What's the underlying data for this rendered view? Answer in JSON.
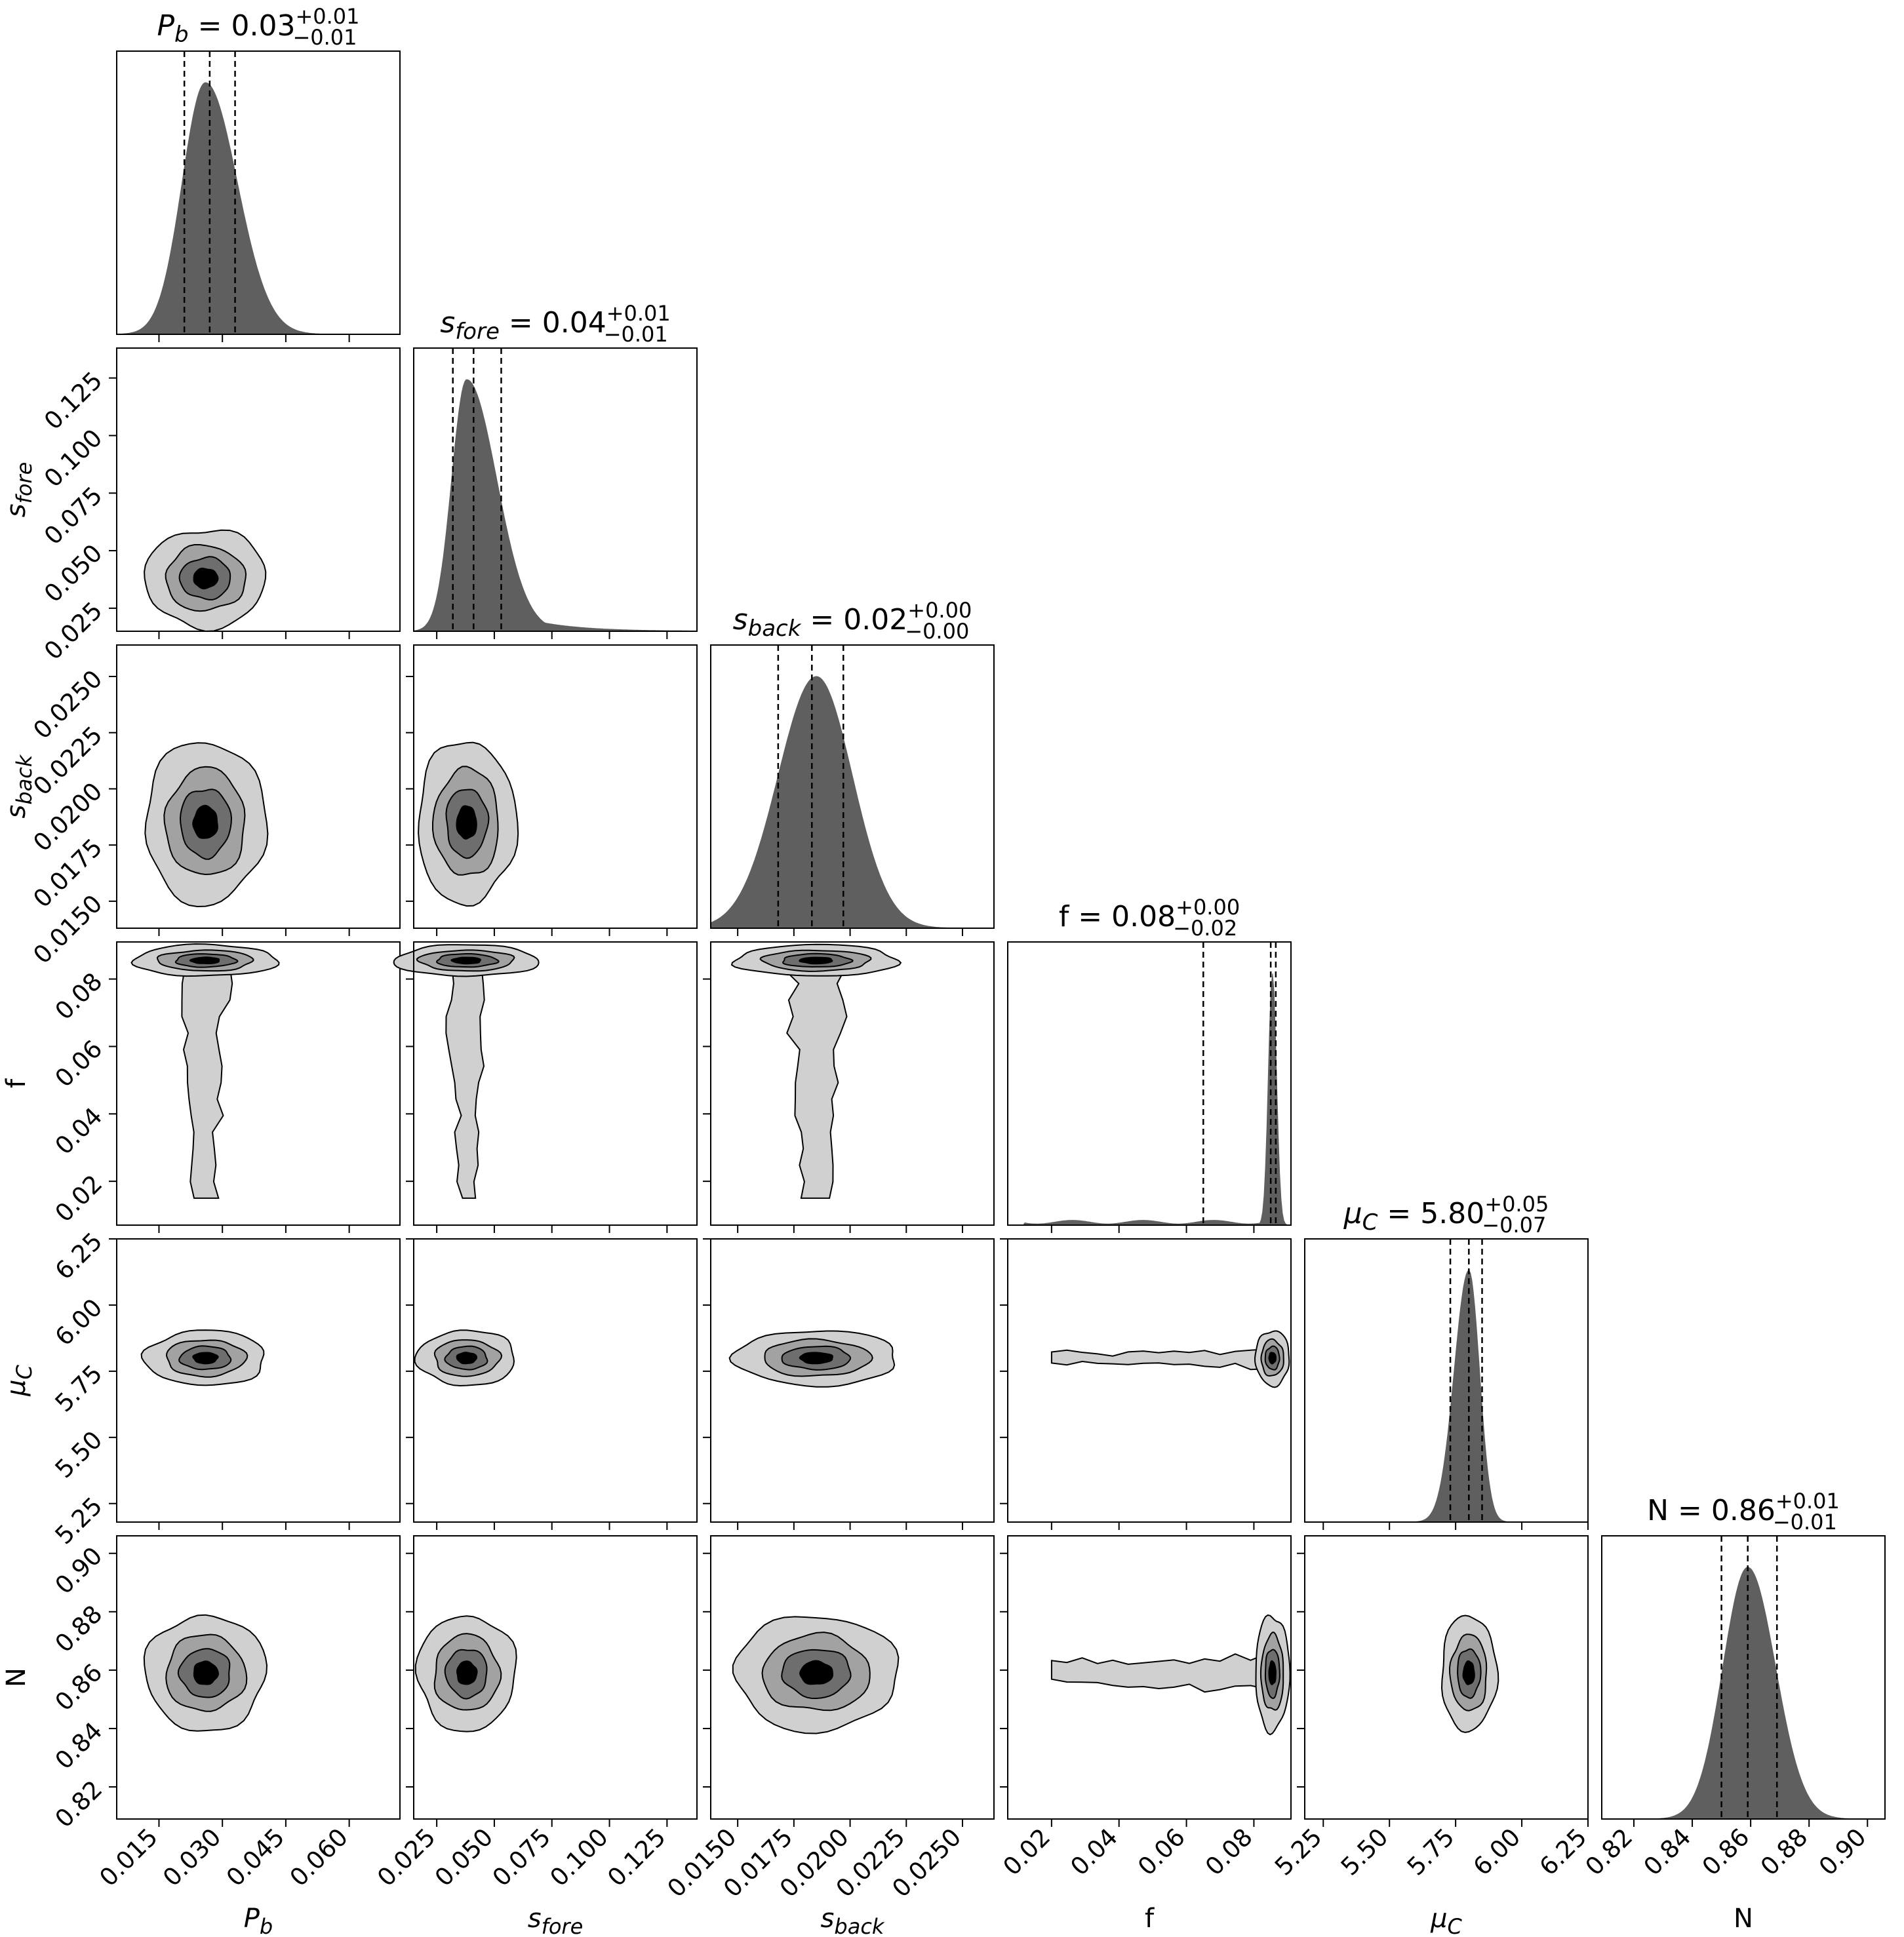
{
  "chart_data": {
    "type": "corner",
    "parameters": [
      {
        "key": "Pb",
        "label": "P",
        "sub": "b",
        "italic": true,
        "range": [
          0.005,
          0.072
        ],
        "median": 0.027,
        "q16": 0.021,
        "q84": 0.033,
        "title_value": "0.03",
        "title_plus": "+0.01",
        "title_minus": "−0.01",
        "hist_peak_x": 0.026,
        "hist_sigma_left": 0.0055,
        "hist_sigma_right": 0.0075,
        "ticks": [
          "0.015",
          "0.030",
          "0.045",
          "0.060"
        ],
        "tick_values": [
          0.015,
          0.03,
          0.045,
          0.06
        ]
      },
      {
        "key": "sfore",
        "label": "s",
        "sub": "fore",
        "italic": true,
        "range": [
          0.015,
          0.138
        ],
        "median": 0.041,
        "q16": 0.032,
        "q84": 0.053,
        "title_value": "0.04",
        "title_plus": "+0.01",
        "title_minus": "−0.01",
        "hist_peak_x": 0.038,
        "hist_sigma_left": 0.0065,
        "hist_sigma_right": 0.013,
        "ticks": [
          "0.025",
          "0.050",
          "0.075",
          "0.100",
          "0.125"
        ],
        "tick_values": [
          0.025,
          0.05,
          0.075,
          0.1,
          0.125
        ]
      },
      {
        "key": "sback",
        "label": "s",
        "sub": "back",
        "italic": true,
        "range": [
          0.0138,
          0.0264
        ],
        "median": 0.0183,
        "q16": 0.0168,
        "q84": 0.0197,
        "title_value": "0.02",
        "title_plus": "+0.00",
        "title_minus": "−0.00",
        "hist_peak_x": 0.0185,
        "hist_sigma_left": 0.0017,
        "hist_sigma_right": 0.0016,
        "ticks": [
          "0.0150",
          "0.0175",
          "0.0200",
          "0.0225",
          "0.0250"
        ],
        "tick_values": [
          0.015,
          0.0175,
          0.02,
          0.0225,
          0.025
        ]
      },
      {
        "key": "f",
        "label": "f",
        "sub": "",
        "italic": false,
        "range": [
          0.007,
          0.091
        ],
        "median": 0.085,
        "q16": 0.065,
        "q84": 0.0865,
        "title_value": "0.08",
        "title_plus": "+0.00",
        "title_minus": "−0.02",
        "hist_peak_x": 0.0855,
        "hist_sigma_left": 0.0012,
        "hist_sigma_right": 0.0012,
        "ticks": [
          "0.02",
          "0.04",
          "0.06",
          "0.08"
        ],
        "tick_values": [
          0.02,
          0.04,
          0.06,
          0.08
        ]
      },
      {
        "key": "muC",
        "label": "μ",
        "sub": "C",
        "italic": true,
        "range": [
          5.18,
          6.25
        ],
        "median": 5.8,
        "q16": 5.73,
        "q84": 5.85,
        "title_value": "5.80",
        "title_plus": "+0.05",
        "title_minus": "−0.07",
        "hist_peak_x": 5.8,
        "hist_sigma_left": 0.055,
        "hist_sigma_right": 0.04,
        "ticks": [
          "5.25",
          "5.50",
          "5.75",
          "6.00",
          "6.25"
        ],
        "tick_values": [
          5.25,
          5.5,
          5.75,
          6.0,
          6.25
        ]
      },
      {
        "key": "N",
        "label": "N",
        "sub": "",
        "italic": false,
        "range": [
          0.809,
          0.906
        ],
        "median": 0.859,
        "q16": 0.85,
        "q84": 0.869,
        "title_value": "0.86",
        "title_plus": "+0.01",
        "title_minus": "−0.01",
        "hist_peak_x": 0.859,
        "hist_sigma_left": 0.0085,
        "hist_sigma_right": 0.0095,
        "ticks": [
          "0.82",
          "0.84",
          "0.86",
          "0.88",
          "0.90"
        ],
        "tick_values": [
          0.82,
          0.84,
          0.86,
          0.88,
          0.9
        ]
      }
    ],
    "contour_levels": [
      "outer",
      "1-sigma",
      "inner",
      "core"
    ],
    "colors": {
      "hist": "#5f5f5f",
      "contour_levels": [
        "#d0d0d0",
        "#a2a2a2",
        "#6e6e6e",
        "#000000"
      ],
      "line": "#000000"
    }
  }
}
